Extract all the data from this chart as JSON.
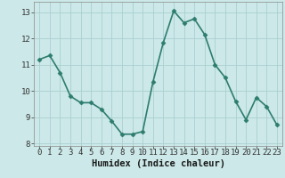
{
  "x": [
    0,
    1,
    2,
    3,
    4,
    5,
    6,
    7,
    8,
    9,
    10,
    11,
    12,
    13,
    14,
    15,
    16,
    17,
    18,
    19,
    20,
    21,
    22,
    23
  ],
  "y": [
    11.2,
    11.35,
    10.7,
    9.8,
    9.55,
    9.55,
    9.3,
    8.85,
    8.35,
    8.35,
    8.45,
    10.35,
    11.85,
    13.05,
    12.6,
    12.75,
    12.15,
    11.0,
    10.5,
    9.6,
    8.9,
    9.75,
    9.4,
    8.7
  ],
  "line_color": "#2d7d6e",
  "marker": "D",
  "marker_size": 2.5,
  "bg_color": "#cce8e8",
  "grid_color": "#aad0d0",
  "xlabel": "Humidex (Indice chaleur)",
  "ylim": [
    7.9,
    13.4
  ],
  "xlim": [
    -0.5,
    23.5
  ],
  "yticks": [
    8,
    9,
    10,
    11,
    12,
    13
  ],
  "xticks": [
    0,
    1,
    2,
    3,
    4,
    5,
    6,
    7,
    8,
    9,
    10,
    11,
    12,
    13,
    14,
    15,
    16,
    17,
    18,
    19,
    20,
    21,
    22,
    23
  ],
  "tick_labelsize": 6.5,
  "xlabel_fontsize": 7.5,
  "linewidth": 1.2
}
